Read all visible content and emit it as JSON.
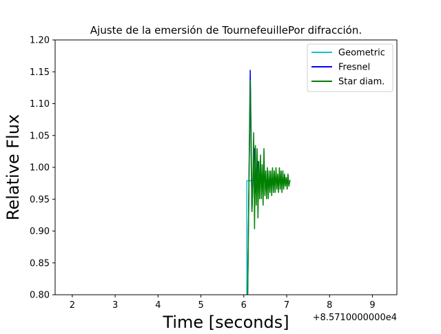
{
  "chart_data": {
    "type": "line",
    "title": "Ajuste de la emersión de TournefeuillePor difracción.",
    "xlabel": "Time [seconds]",
    "ylabel": "Relative Flux",
    "x_offset_label": "+8.5710000000e4",
    "xlim": [
      1.6,
      9.57
    ],
    "ylim": [
      0.8,
      1.2
    ],
    "xticks": [
      2,
      3,
      4,
      5,
      6,
      7,
      8,
      9
    ],
    "yticks": [
      0.8,
      0.85,
      0.9,
      0.95,
      1.0,
      1.05,
      1.1,
      1.15,
      1.2
    ],
    "ytick_labels": [
      "0.80",
      "0.85",
      "0.90",
      "0.95",
      "1.00",
      "1.05",
      "1.10",
      "1.15",
      "1.20"
    ],
    "legend_position": "upper right",
    "grid": false,
    "series": [
      {
        "name": "Geometric",
        "color": "#17becf",
        "points": [
          [
            6.07,
            0.79
          ],
          [
            6.07,
            0.979
          ],
          [
            7.08,
            0.979
          ]
        ]
      },
      {
        "name": "Fresnel",
        "color": "#0000ff",
        "points": [
          [
            6.05,
            0.79
          ],
          [
            6.09,
            0.8
          ],
          [
            6.12,
            0.98
          ],
          [
            6.15,
            1.153
          ],
          [
            6.17,
            1.05
          ],
          [
            6.19,
            0.93
          ],
          [
            6.22,
            0.995
          ],
          [
            6.25,
            1.03
          ],
          [
            6.28,
            0.96
          ],
          [
            6.31,
            0.98
          ],
          [
            6.34,
            1.01
          ]
        ]
      },
      {
        "name": "Star diam.",
        "color": "#008000",
        "points": [
          [
            6.06,
            0.79
          ],
          [
            6.09,
            0.8
          ],
          [
            6.12,
            0.97
          ],
          [
            6.15,
            1.137
          ],
          [
            6.17,
            1.02
          ],
          [
            6.19,
            0.93
          ],
          [
            6.21,
            0.97
          ],
          [
            6.23,
            1.055
          ],
          [
            6.25,
            0.903
          ],
          [
            6.27,
            1.035
          ],
          [
            6.29,
            0.94
          ],
          [
            6.31,
            1.03
          ],
          [
            6.33,
            0.92
          ],
          [
            6.35,
            1.01
          ],
          [
            6.37,
            0.95
          ],
          [
            6.39,
            1.02
          ],
          [
            6.41,
            0.95
          ],
          [
            6.43,
            1.005
          ],
          [
            6.45,
            0.94
          ],
          [
            6.47,
            1.03
          ],
          [
            6.49,
            0.955
          ],
          [
            6.51,
            0.995
          ],
          [
            6.53,
            0.95
          ],
          [
            6.55,
            1.0
          ],
          [
            6.57,
            0.95
          ],
          [
            6.59,
            0.995
          ],
          [
            6.61,
            0.96
          ],
          [
            6.63,
            0.995
          ],
          [
            6.65,
            0.955
          ],
          [
            6.67,
            1.0
          ],
          [
            6.69,
            0.96
          ],
          [
            6.71,
            0.995
          ],
          [
            6.73,
            0.96
          ],
          [
            6.75,
            1.0
          ],
          [
            6.77,
            0.965
          ],
          [
            6.79,
            0.99
          ],
          [
            6.81,
            0.96
          ],
          [
            6.83,
            1.0
          ],
          [
            6.85,
            0.965
          ],
          [
            6.87,
            0.995
          ],
          [
            6.89,
            0.96
          ],
          [
            6.91,
            0.995
          ],
          [
            6.93,
            0.965
          ],
          [
            6.95,
            0.99
          ],
          [
            6.97,
            0.97
          ],
          [
            6.99,
            0.985
          ],
          [
            7.01,
            0.965
          ],
          [
            7.03,
            0.99
          ],
          [
            7.05,
            0.97
          ],
          [
            7.08,
            0.98
          ]
        ]
      }
    ]
  }
}
